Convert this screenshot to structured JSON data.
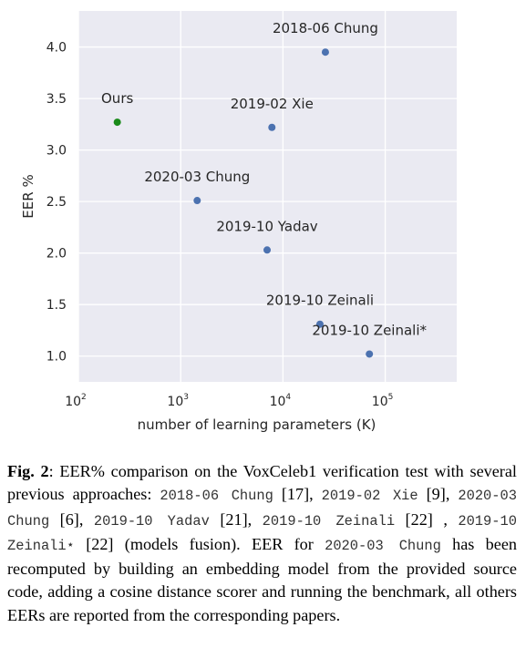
{
  "chart_data": {
    "type": "scatter",
    "xscale": "log",
    "xlabel": "number of learning parameters (K)",
    "ylabel": "EER %",
    "xlim": [
      100,
      500000
    ],
    "ylim": [
      0.75,
      4.35
    ],
    "grid": true,
    "x_ticks": [
      {
        "base": "10",
        "exp": "2"
      },
      {
        "base": "10",
        "exp": "3"
      },
      {
        "base": "10",
        "exp": "4"
      },
      {
        "base": "10",
        "exp": "5"
      }
    ],
    "y_ticks": [
      "1.0",
      "1.5",
      "2.0",
      "2.5",
      "3.0",
      "3.5",
      "4.0"
    ],
    "points": [
      {
        "label": "Ours",
        "x": 240,
        "y": 3.27,
        "color": "#1a8a1a"
      },
      {
        "label": "2018-06 Chung",
        "x": 26000,
        "y": 3.95,
        "color": "#4c72b0"
      },
      {
        "label": "2019-02  Xie",
        "x": 7800,
        "y": 3.22,
        "color": "#4c72b0"
      },
      {
        "label": "2020-03 Chung",
        "x": 1450,
        "y": 2.51,
        "color": "#4c72b0"
      },
      {
        "label": "2019-10 Yadav",
        "x": 7000,
        "y": 2.03,
        "color": "#4c72b0"
      },
      {
        "label": "2019-10 Zeinali",
        "x": 23000,
        "y": 1.31,
        "color": "#4c72b0"
      },
      {
        "label": "2019-10 Zeinali*",
        "x": 70000,
        "y": 1.02,
        "color": "#4c72b0"
      }
    ]
  },
  "caption": {
    "fig_label": "Fig. 2",
    "t1": ": EER% comparison on the VoxCeleb1 verification test with several previous approaches: ",
    "m1": "2018-06 Chung",
    "t2": " [17], ",
    "m2": "2019-02 Xie",
    "t3": " [9], ",
    "m3": "2020-03 Chung",
    "t4": " [6], ",
    "m4": "2019-10 Yadav",
    "t5": " [21], ",
    "m5": "2019-10 Zeinali",
    "t6": " [22] , ",
    "m6": "2019-10 Zeinali⋆",
    "t7": " [22] (models fusion). EER for ",
    "m7": "2020-03 Chung",
    "t8": " has been recomputed by building an embedding model from the provided source code, adding a cosine distance scorer and running the benchmark, all others EERs are reported from the corresponding papers."
  }
}
